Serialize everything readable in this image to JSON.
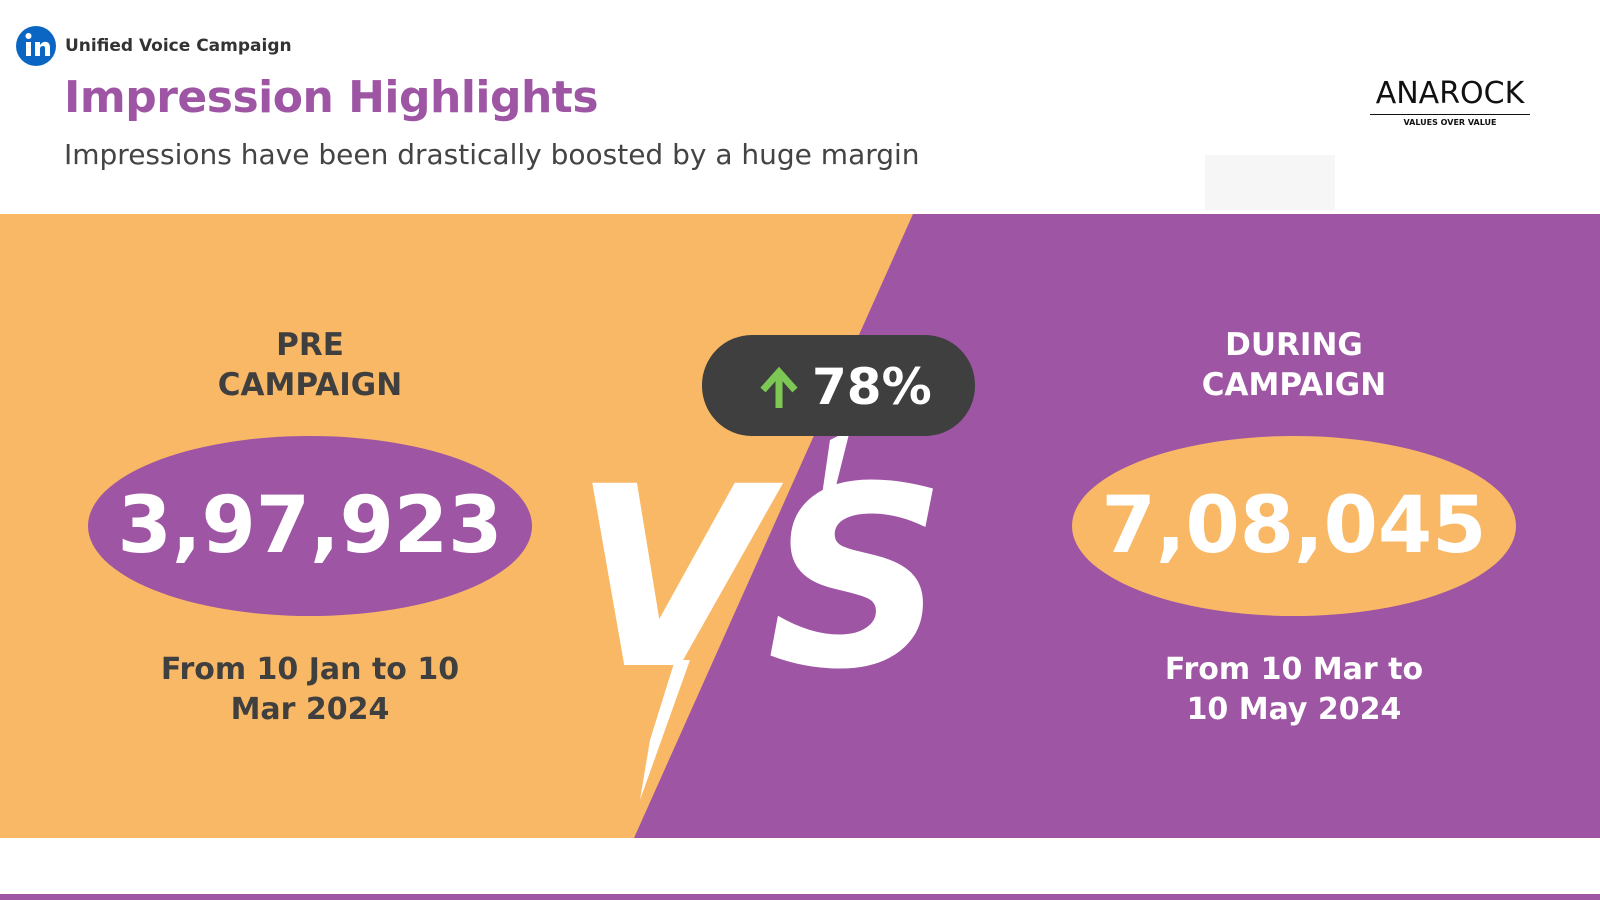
{
  "header": {
    "brand": "Unified Voice Campaign",
    "title": "Impression Highlights",
    "subtitle": "Impressions have been drastically boosted by a huge margin"
  },
  "logo": {
    "name": "ANAROCK",
    "tagline": "VALUES OVER VALUE"
  },
  "comparison": {
    "pre": {
      "label": "PRE CAMPAIGN",
      "value": "3,97,923",
      "period": "From 10 Jan to 10 Mar 2024"
    },
    "during": {
      "label": "DURING CAMPAIGN",
      "value": "7,08,045",
      "period": "From 10 Mar to 10 May 2024"
    },
    "change": "78%",
    "versus": "VS"
  }
}
